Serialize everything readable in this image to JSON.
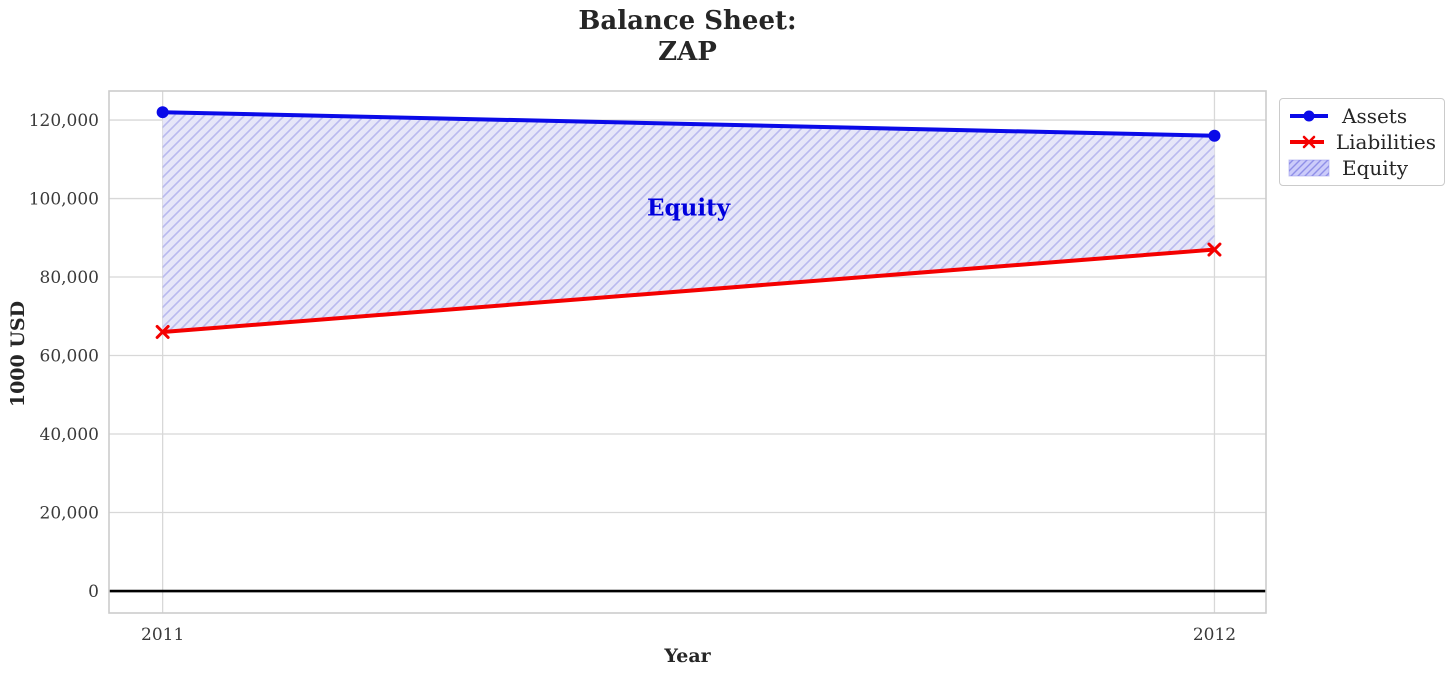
{
  "title": {
    "line1": "Balance Sheet:",
    "line2": "ZAP"
  },
  "chart_data": {
    "type": "line",
    "title": "Balance Sheet:\nZAP",
    "xlabel": "Year",
    "ylabel": "1000 USD",
    "x": [
      2011,
      2012
    ],
    "x_tick_labels": [
      "2011",
      "2012"
    ],
    "y_ticks": [
      0,
      20000,
      40000,
      60000,
      80000,
      100000,
      120000
    ],
    "y_tick_labels": [
      "0",
      "20,000",
      "40,000",
      "60,000",
      "80,000",
      "100,000",
      "120,000"
    ],
    "xlim": [
      2010.949,
      2012.049
    ],
    "ylim": [
      -5600,
      127400
    ],
    "grid": true,
    "legend_position": "upper-right-outside",
    "series": [
      {
        "name": "Assets",
        "values": [
          122000,
          116000
        ],
        "color": "#0a0ae8",
        "marker": "circle",
        "line_width": 4
      },
      {
        "name": "Liabilities",
        "values": [
          66000,
          87000
        ],
        "color": "#f40000",
        "marker": "x",
        "line_width": 4
      }
    ],
    "fill_between": {
      "name": "Equity",
      "between": [
        "Liabilities",
        "Assets"
      ],
      "values": [
        56000,
        29000
      ],
      "fill_color": "#e6e6f8",
      "hatch": "/",
      "hatch_color": "#b9b9ef",
      "legend_fill_color": "#ccccfa",
      "legend_hatch_color": "#8f8fe8"
    },
    "annotation": {
      "text": "Equity",
      "x": 2011.5,
      "y": 97750,
      "color": "#0000dd"
    },
    "zero_line": {
      "y": 0,
      "color": "#000000"
    },
    "grid_color": "#d8d8d8",
    "border_color": "#cccccc"
  }
}
